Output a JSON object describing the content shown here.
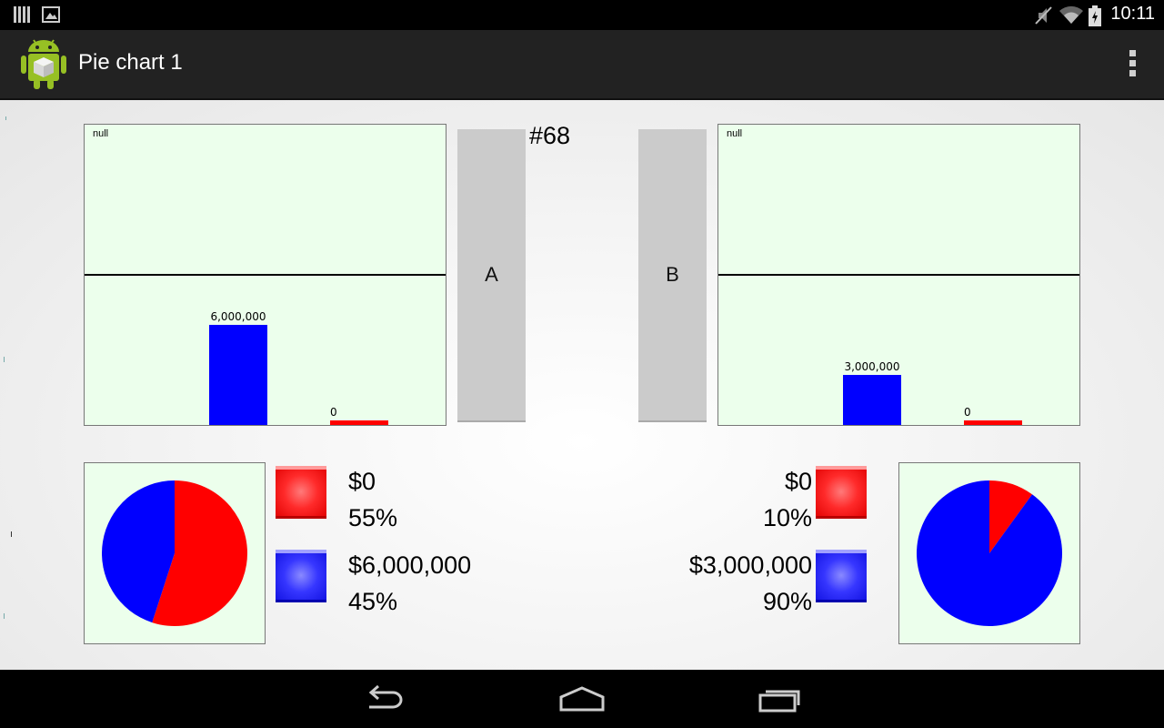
{
  "status_bar": {
    "time": "10:11",
    "icons": [
      "notification-bars-icon",
      "gallery-icon",
      "mute-icon",
      "wifi-icon",
      "battery-icon"
    ]
  },
  "app_bar": {
    "title": "Pie chart 1",
    "icon": "android-app-icon",
    "menu_icon": "overflow-menu-icon"
  },
  "counter": "#68",
  "buttons": {
    "a": "A",
    "b": "B"
  },
  "colors": {
    "red": "#ff0000",
    "blue": "#0000ff",
    "panel": "#ecffec"
  },
  "left": {
    "bar_chart": {
      "title": "null",
      "bars": [
        {
          "color": "blue",
          "value": 6000000,
          "label": "6,000,000"
        },
        {
          "color": "red",
          "value": 0,
          "label": "0"
        }
      ]
    },
    "pie": {
      "slices": [
        {
          "color": "red",
          "percent": 55
        },
        {
          "color": "blue",
          "percent": 45
        }
      ]
    },
    "legend": [
      {
        "color": "red",
        "amount": "$0",
        "percent": "55%"
      },
      {
        "color": "blue",
        "amount": "$6,000,000",
        "percent": "45%"
      }
    ]
  },
  "right": {
    "bar_chart": {
      "title": "null",
      "bars": [
        {
          "color": "blue",
          "value": 3000000,
          "label": "3,000,000"
        },
        {
          "color": "red",
          "value": 0,
          "label": "0"
        }
      ]
    },
    "pie": {
      "slices": [
        {
          "color": "red",
          "percent": 10
        },
        {
          "color": "blue",
          "percent": 90
        }
      ]
    },
    "legend": [
      {
        "color": "red",
        "amount": "$0",
        "percent": "10%"
      },
      {
        "color": "blue",
        "amount": "$3,000,000",
        "percent": "90%"
      }
    ]
  },
  "chart_data": [
    {
      "type": "bar",
      "title": "null",
      "categories": [
        "blue",
        "red"
      ],
      "values": [
        6000000,
        0
      ],
      "data_labels": [
        "6,000,000",
        "0"
      ],
      "reference_line": 9000000,
      "ylim": [
        0,
        18000000
      ]
    },
    {
      "type": "bar",
      "title": "null",
      "categories": [
        "blue",
        "red"
      ],
      "values": [
        3000000,
        0
      ],
      "data_labels": [
        "3,000,000",
        "0"
      ],
      "reference_line": 9000000,
      "ylim": [
        0,
        18000000
      ]
    },
    {
      "type": "pie",
      "categories": [
        "$0",
        "$6,000,000"
      ],
      "values": [
        55,
        45
      ]
    },
    {
      "type": "pie",
      "categories": [
        "$0",
        "$3,000,000"
      ],
      "values": [
        10,
        90
      ]
    }
  ],
  "nav_bar": {
    "icons": [
      "back-icon",
      "home-icon",
      "recents-icon"
    ]
  }
}
